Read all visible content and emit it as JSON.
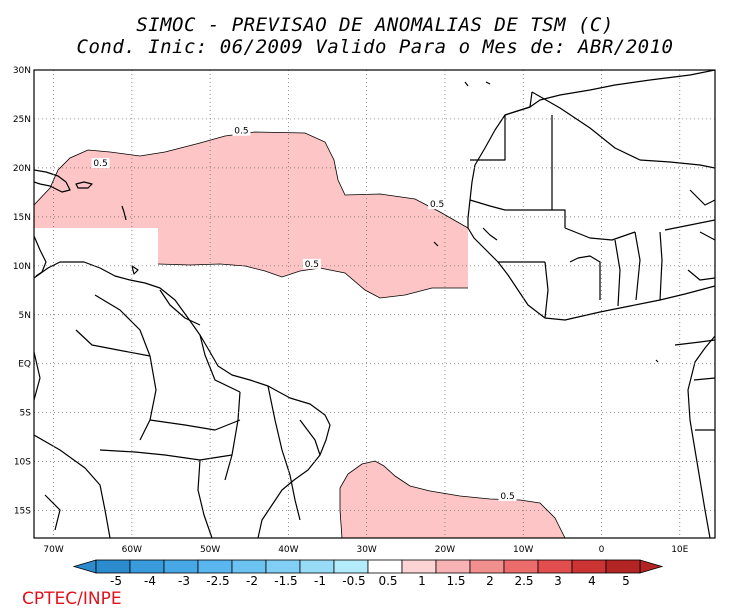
{
  "title": {
    "line1": "SIMOC - PREVISAO DE ANOMALIAS DE TSM (C)",
    "line2": "Cond. Inic: 06/2009   Valido Para o Mes de: ABR/2010"
  },
  "axes": {
    "lat_labels": [
      "30N",
      "25N",
      "20N",
      "15N",
      "10N",
      "5N",
      "EQ",
      "5S",
      "10S",
      "15S"
    ],
    "lon_labels": [
      "70W",
      "60W",
      "50W",
      "40W",
      "30W",
      "20W",
      "10W",
      "0",
      "10E"
    ]
  },
  "contours": [
    {
      "label": "0.5",
      "lon": -46,
      "lat": 23.8
    },
    {
      "label": "0.5",
      "lon": -64,
      "lat": 20.5
    },
    {
      "label": "0.5",
      "lon": -21,
      "lat": 16.3
    },
    {
      "label": "0.5",
      "lon": -37,
      "lat": 10.2
    },
    {
      "label": "0.5",
      "lon": -12,
      "lat": -13.5
    }
  ],
  "colorbar": {
    "labels": [
      "-5",
      "-4",
      "-3",
      "-2.5",
      "-2",
      "-1.5",
      "-1",
      "-0.5",
      "0.5",
      "1",
      "1.5",
      "2",
      "2.5",
      "3",
      "4",
      "5"
    ],
    "colors": [
      "#2b8bcc",
      "#3a9bdc",
      "#48a8e6",
      "#5ab6ee",
      "#6cc3f2",
      "#82cff5",
      "#98dbf7",
      "#b4ebfb",
      "#ffffff",
      "#fcd4d4",
      "#f7b3b3",
      "#f28f8f",
      "#ec6b6b",
      "#e24d4d",
      "#cc3434",
      "#b32525"
    ]
  },
  "anomaly_fill": "#fdc5c5",
  "credit": "CPTEC/INPE"
}
